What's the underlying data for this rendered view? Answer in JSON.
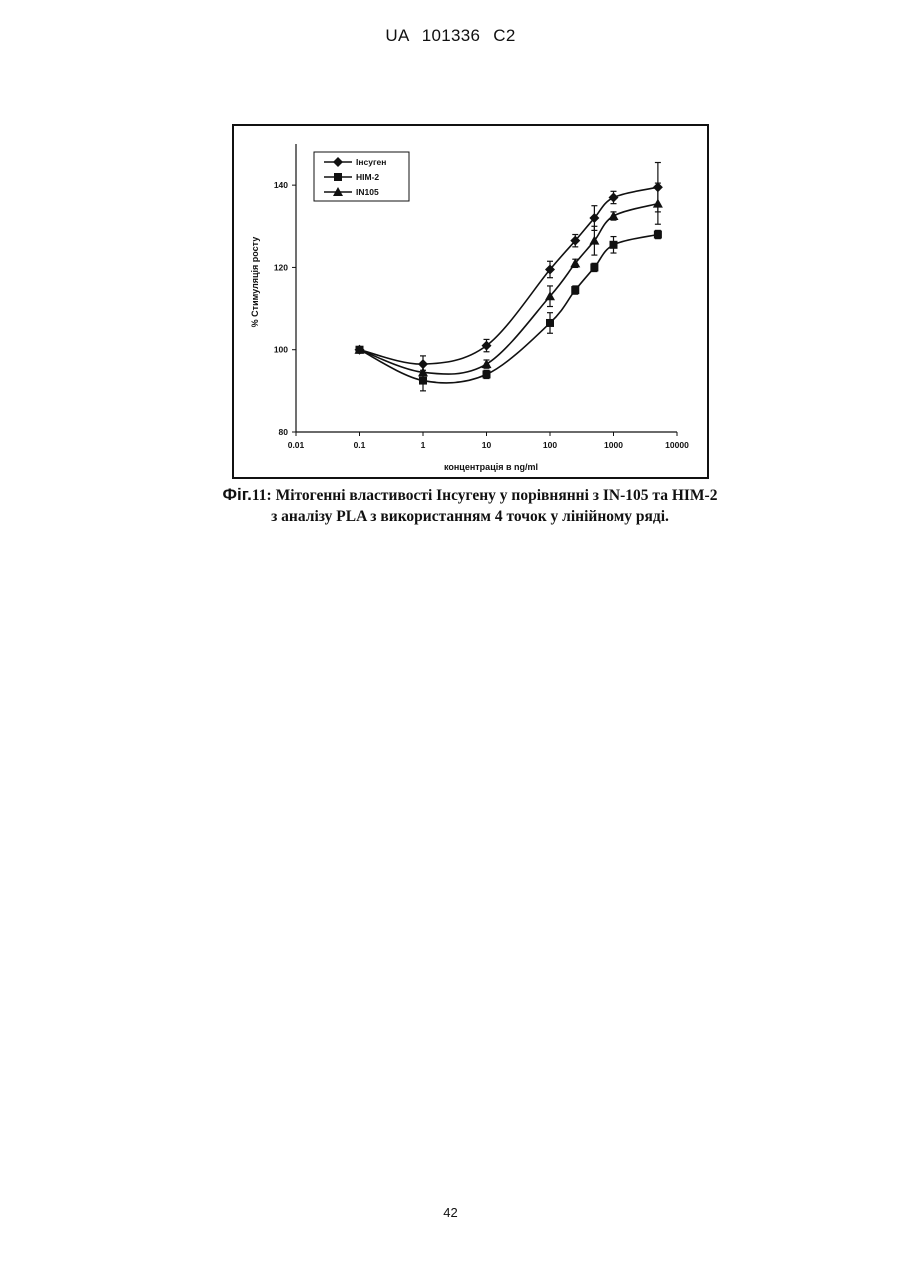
{
  "header": {
    "text": "UA   101336   C2"
  },
  "caption": {
    "label": "Фіг.",
    "line1": "11: Мітогенні властивості Інсугену у порівнянні з IN-105 та HIM-2",
    "line2": "з аналізу PLA з використанням 4 точок у лінійному ряді."
  },
  "page_number": "42",
  "chart_data": {
    "type": "line",
    "xlabel": "концентрація в ng/ml",
    "ylabel": "% Стимуляція росту",
    "xscale": "log",
    "xlim": [
      0.01,
      10000
    ],
    "ylim": [
      80,
      150
    ],
    "x_ticks": [
      "0.01",
      "0.1",
      "1",
      "10",
      "100",
      "1000",
      "10000"
    ],
    "y_ticks": [
      "80",
      "100",
      "120",
      "140"
    ],
    "legend_position": "top-left",
    "series": [
      {
        "name": "Інсуген",
        "marker": "diamond",
        "x": [
          0.1,
          1,
          10,
          100,
          250,
          500,
          1000,
          5000
        ],
        "y": [
          100,
          96.5,
          101,
          119.5,
          126.5,
          132,
          137,
          139.5
        ],
        "err": [
          0,
          2,
          1.5,
          2,
          1.5,
          3,
          1.5,
          6
        ]
      },
      {
        "name": "HIM-2",
        "marker": "square",
        "x": [
          0.1,
          1,
          10,
          100,
          250,
          500,
          1000,
          5000
        ],
        "y": [
          100,
          92.5,
          94,
          106.5,
          114.5,
          120,
          125.5,
          128
        ],
        "err": [
          0,
          2.5,
          1,
          2.5,
          1,
          1,
          2,
          1
        ]
      },
      {
        "name": "IN105",
        "marker": "triangle",
        "x": [
          0.1,
          1,
          10,
          100,
          250,
          500,
          1000,
          5000
        ],
        "y": [
          100,
          94.5,
          96.5,
          113,
          121,
          126.5,
          132.5,
          135.5
        ],
        "err": [
          0,
          2,
          1,
          2.5,
          1,
          3.5,
          1,
          5
        ]
      }
    ],
    "colors": {
      "line": "#111111",
      "background": "#ffffff"
    }
  }
}
